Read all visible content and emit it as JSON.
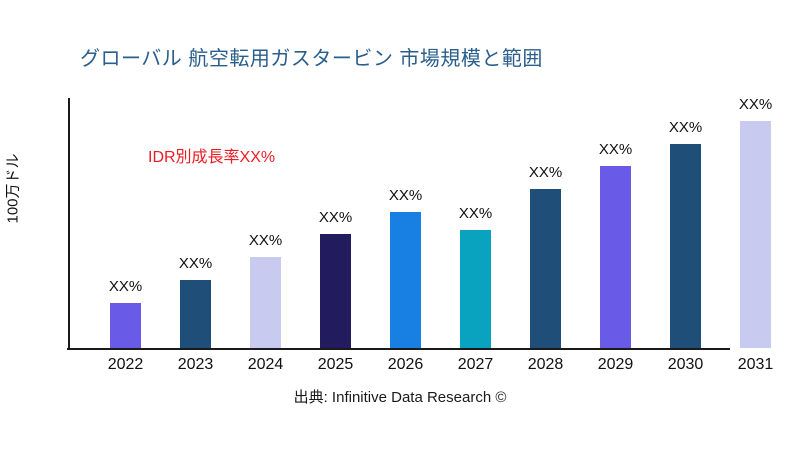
{
  "title": "グローバル 航空転用ガスタービン 市場規模と範囲",
  "annotation": {
    "text": "IDR別成長率XX%",
    "color": "#ed1c24"
  },
  "source": "出典: Infinitive Data Research ©",
  "colors": {
    "title_text": "#2a5e8c",
    "annotation_text": "#ed1c24",
    "axis": "#1a1a1a",
    "label_text": "#111111",
    "background": "#ffffff"
  },
  "chart_data": {
    "type": "bar",
    "title": "グローバル 航空転用ガスタービン 市場規模と範囲",
    "xlabel": "",
    "ylabel": "100万ドル",
    "categories": [
      "2022",
      "2023",
      "2024",
      "2025",
      "2026",
      "2027",
      "2028",
      "2029",
      "2030",
      "2031"
    ],
    "values": [
      20,
      30,
      40,
      50,
      60,
      52,
      70,
      80,
      90,
      100
    ],
    "value_unit": "relative height, percent of tallest (2031) bar; actual values masked as XX%",
    "bar_value_labels": [
      "XX%",
      "XX%",
      "XX%",
      "XX%",
      "XX%",
      "XX%",
      "XX%",
      "XX%",
      "XX%",
      "XX%"
    ],
    "bar_colors": [
      "#6a5ae8",
      "#1f4e79",
      "#c8cbef",
      "#221c5f",
      "#187fe3",
      "#09a3bf",
      "#1f4e79",
      "#6a5ae8",
      "#1f4e79",
      "#c8cbef"
    ],
    "annotation": "IDR別成長率XX%",
    "grid": false,
    "legend": false,
    "ylim": [
      0,
      110
    ]
  }
}
